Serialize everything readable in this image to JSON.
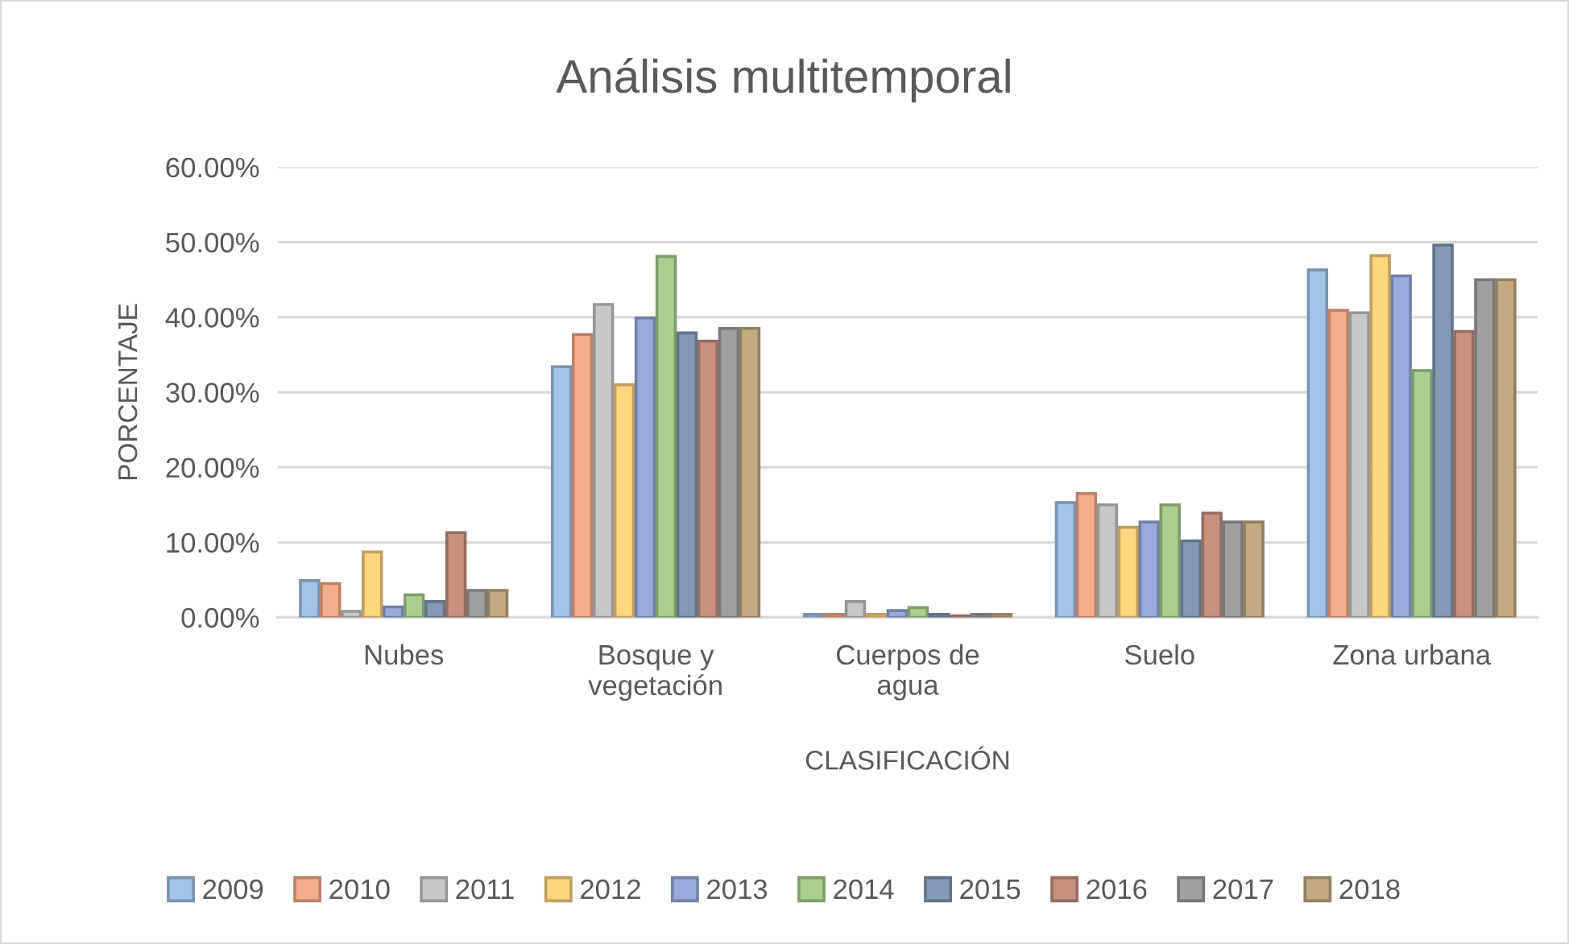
{
  "chart_data": {
    "type": "bar",
    "title": "Análisis multitemporal",
    "xlabel": "CLASIFICACIÓN",
    "ylabel": "PORCENTAJE",
    "categories": [
      "Nubes",
      "Bosque y vegetación",
      "Cuerpos de agua",
      "Suelo",
      "Zona urbana"
    ],
    "series": [
      {
        "name": "2009",
        "color": "#a3c4e8",
        "values": [
          4.9,
          33.4,
          0.4,
          15.3,
          46.3
        ]
      },
      {
        "name": "2010",
        "color": "#f5ae8c",
        "values": [
          4.5,
          37.7,
          0.4,
          16.5,
          40.9
        ]
      },
      {
        "name": "2011",
        "color": "#c8c8c8",
        "values": [
          0.8,
          41.7,
          2.1,
          15.0,
          40.6
        ]
      },
      {
        "name": "2012",
        "color": "#ffd680",
        "values": [
          8.7,
          31.0,
          0.4,
          12.0,
          48.2
        ]
      },
      {
        "name": "2013",
        "color": "#9aaadc",
        "values": [
          1.4,
          39.9,
          0.9,
          12.7,
          45.5
        ]
      },
      {
        "name": "2014",
        "color": "#a9d08e",
        "values": [
          3.0,
          48.1,
          1.3,
          15.0,
          32.9
        ]
      },
      {
        "name": "2015",
        "color": "#8399b6",
        "values": [
          2.1,
          37.9,
          0.4,
          10.2,
          49.6
        ]
      },
      {
        "name": "2016",
        "color": "#c7907f",
        "values": [
          11.3,
          36.8,
          0.2,
          13.9,
          38.1
        ]
      },
      {
        "name": "2017",
        "color": "#a0a0a0",
        "values": [
          3.6,
          38.5,
          0.4,
          12.7,
          45.0
        ]
      },
      {
        "name": "2018",
        "color": "#c4aa83",
        "values": [
          3.6,
          38.5,
          0.4,
          12.7,
          45.0
        ]
      }
    ],
    "ylim": [
      0,
      60
    ],
    "yticks": [
      {
        "value": 0,
        "label": "0.00%"
      },
      {
        "value": 10,
        "label": "10.00%"
      },
      {
        "value": 20,
        "label": "20.00%"
      },
      {
        "value": 30,
        "label": "30.00%"
      },
      {
        "value": 40,
        "label": "40.00%"
      },
      {
        "value": 50,
        "label": "50.00%"
      },
      {
        "value": 60,
        "label": "60.00%"
      }
    ],
    "grid": "y",
    "legend": "bottom"
  }
}
